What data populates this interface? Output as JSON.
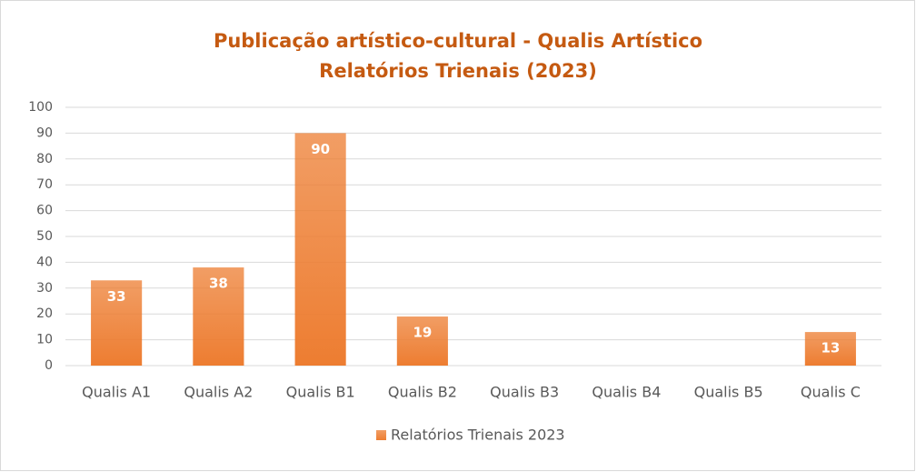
{
  "chart_data": {
    "type": "bar",
    "title": "Publicação artístico-cultural - Qualis Artístico",
    "subtitle": "Relatórios Trienais (2023)",
    "categories": [
      "Qualis A1",
      "Qualis A2",
      "Qualis B1",
      "Qualis B2",
      "Qualis B3",
      "Qualis B4",
      "Qualis B5",
      "Qualis C"
    ],
    "series": [
      {
        "name": "Relatórios Trienais 2023",
        "color": "#ed7d31",
        "values": [
          33,
          38,
          90,
          19,
          null,
          null,
          null,
          13
        ]
      }
    ],
    "ylim": [
      0,
      100
    ],
    "yticks": [
      0,
      10,
      20,
      30,
      40,
      50,
      60,
      70,
      80,
      90,
      100
    ],
    "grid": true,
    "legend": "bottom"
  }
}
